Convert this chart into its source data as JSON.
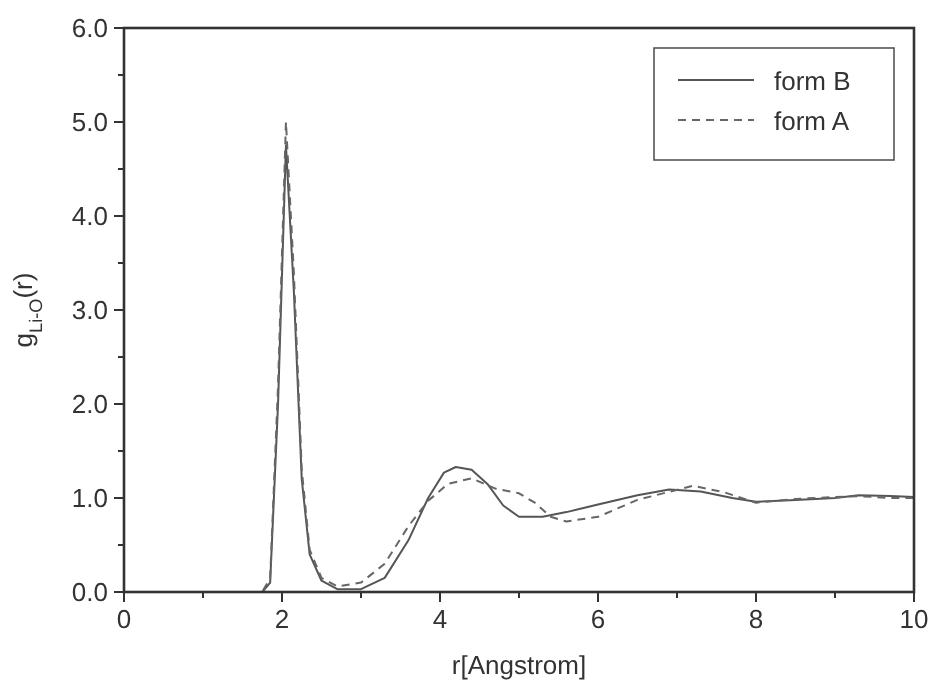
{
  "chart_data": {
    "type": "line",
    "xlabel": "r[Angstrom]",
    "ylabel": "g$_{Li-O}$(r)",
    "xlim": [
      0,
      10
    ],
    "ylim": [
      0,
      6
    ],
    "xticks": [
      0,
      {
        "value": 1,
        "label": null
      },
      2,
      {
        "value": 3,
        "label": null
      },
      4,
      {
        "value": 5,
        "label": null
      },
      6,
      {
        "value": 7,
        "label": null
      },
      8,
      {
        "value": 9,
        "label": null
      },
      10
    ],
    "yticks": [
      {
        "value": 0,
        "label": "0.0"
      },
      {
        "value": 0.5,
        "label": null
      },
      {
        "value": 1,
        "label": "1.0"
      },
      {
        "value": 1.5,
        "label": null
      },
      {
        "value": 2,
        "label": "2.0"
      },
      {
        "value": 2.5,
        "label": null
      },
      {
        "value": 3,
        "label": "3.0"
      },
      {
        "value": 3.5,
        "label": null
      },
      {
        "value": 4,
        "label": "4.0"
      },
      {
        "value": 4.5,
        "label": null
      },
      {
        "value": 5,
        "label": "5.0"
      },
      {
        "value": 5.5,
        "label": null
      },
      {
        "value": 6,
        "label": "6.0"
      }
    ],
    "legend": "top right",
    "grid": false,
    "series": [
      {
        "name": "form B",
        "color": "#555555",
        "line_style": "solid",
        "x": [
          0,
          1.75,
          1.85,
          1.95,
          2.05,
          2.15,
          2.25,
          2.35,
          2.5,
          2.7,
          3.0,
          3.3,
          3.6,
          3.85,
          4.05,
          4.2,
          4.4,
          4.6,
          4.8,
          5.0,
          5.3,
          5.6,
          6.0,
          6.5,
          6.9,
          7.3,
          7.7,
          8.0,
          8.5,
          9.0,
          9.3,
          9.7,
          10
        ],
        "values": [
          0,
          0,
          0.1,
          2.0,
          4.75,
          3.2,
          1.2,
          0.4,
          0.12,
          0.03,
          0.03,
          0.15,
          0.55,
          1.0,
          1.27,
          1.33,
          1.3,
          1.15,
          0.92,
          0.8,
          0.8,
          0.85,
          0.93,
          1.03,
          1.09,
          1.07,
          1.0,
          0.96,
          0.98,
          1.0,
          1.03,
          1.02,
          1.01
        ]
      },
      {
        "name": "form A",
        "color": "#666666",
        "line_style": "dashed",
        "x": [
          0,
          1.75,
          1.85,
          1.95,
          2.05,
          2.15,
          2.25,
          2.35,
          2.5,
          2.7,
          3.0,
          3.3,
          3.6,
          3.85,
          4.1,
          4.4,
          4.7,
          5.0,
          5.2,
          5.4,
          5.6,
          6.0,
          6.5,
          7.2,
          7.6,
          8.0,
          8.5,
          9.0,
          9.3,
          9.7,
          10
        ],
        "values": [
          0,
          0,
          0.15,
          2.2,
          5.0,
          3.4,
          1.3,
          0.45,
          0.15,
          0.06,
          0.1,
          0.3,
          0.7,
          0.97,
          1.15,
          1.21,
          1.1,
          1.05,
          0.95,
          0.8,
          0.75,
          0.8,
          0.98,
          1.13,
          1.06,
          0.95,
          0.99,
          1.01,
          1.02,
          1.0,
          1.0
        ]
      }
    ]
  }
}
